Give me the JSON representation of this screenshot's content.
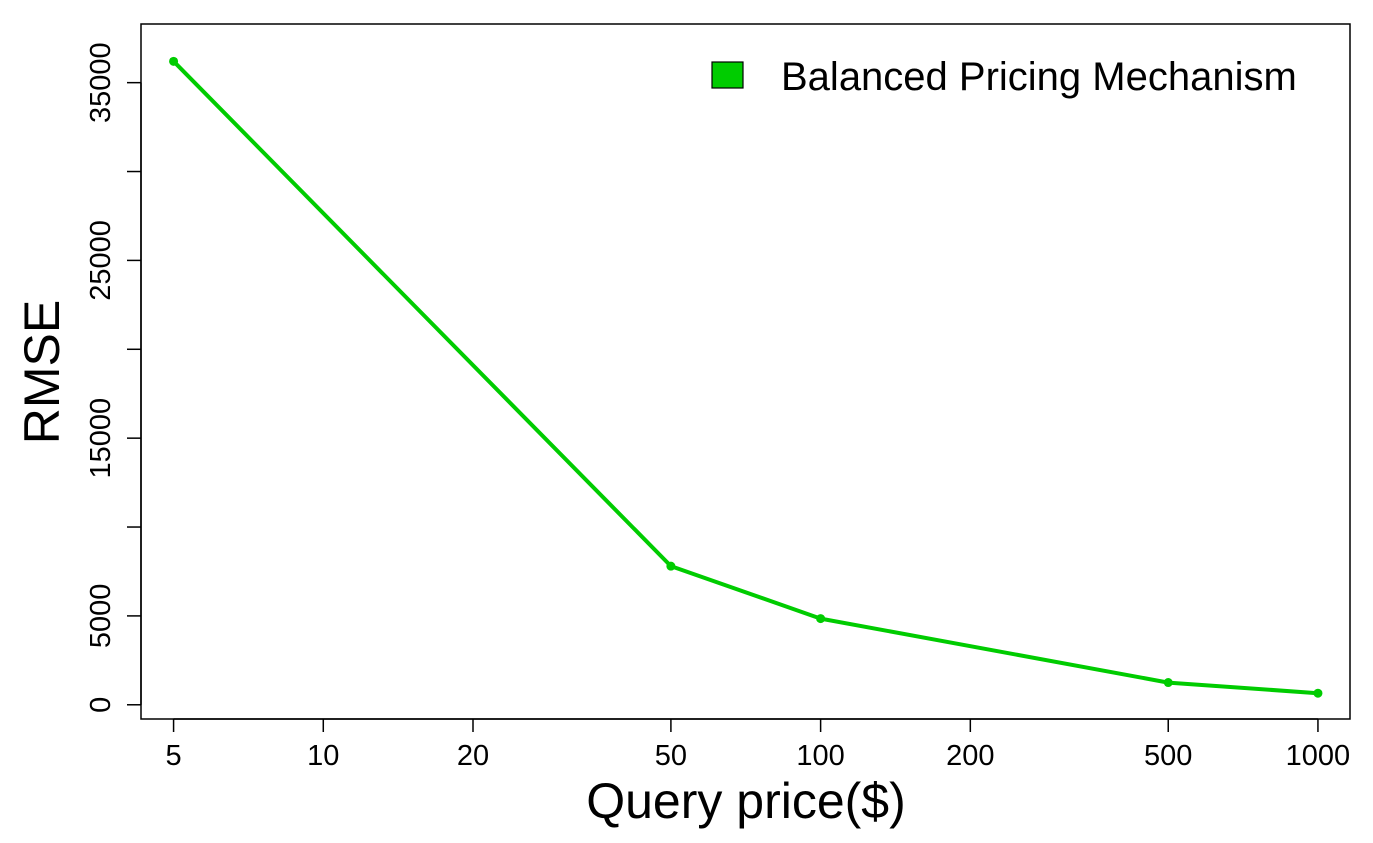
{
  "chart_data": {
    "type": "line",
    "title": "",
    "xlabel": "Query price($)",
    "ylabel": "RMSE",
    "x_scale": "log",
    "xlim": [
      4.3,
      1160
    ],
    "ylim": [
      -800,
      38300
    ],
    "x_ticks": [
      5,
      10,
      20,
      50,
      100,
      200,
      500,
      1000
    ],
    "x_tick_labels": [
      "5",
      "10",
      "20",
      "50",
      "100",
      "200",
      "500",
      "1000"
    ],
    "y_ticks": [
      0,
      5000,
      10000,
      15000,
      20000,
      25000,
      30000,
      35000
    ],
    "y_tick_labels": [
      "0",
      "5000",
      "",
      "15000",
      "",
      "25000",
      "",
      "35000"
    ],
    "grid": false,
    "legend_position": "top-right",
    "series": [
      {
        "name": "Balanced Pricing Mechanism",
        "color": "#00cc00",
        "x": [
          5,
          50,
          100,
          500,
          1000
        ],
        "y": [
          36200,
          7800,
          4850,
          1250,
          650
        ]
      }
    ]
  }
}
